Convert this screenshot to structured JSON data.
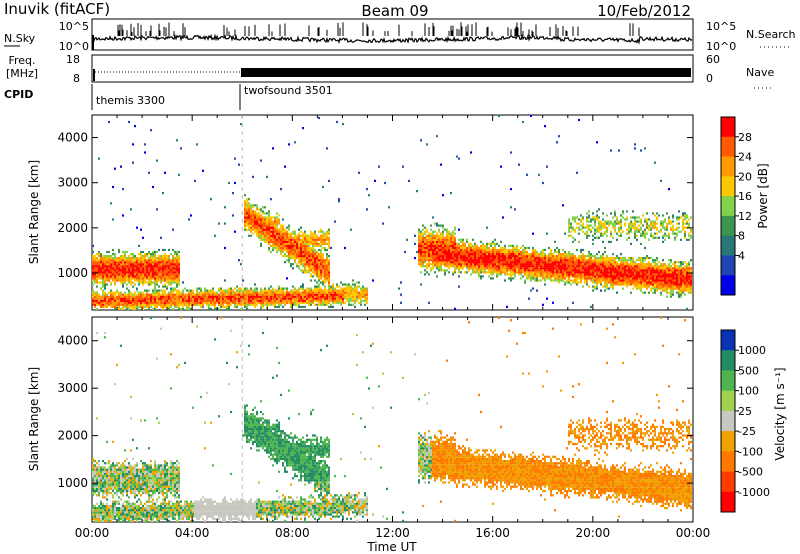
{
  "header": {
    "station": "Inuvik (fitACF)",
    "beam": "Beam 09",
    "date": "10/Feb/2012"
  },
  "panels": {
    "nsky": {
      "left_label": "N.Sky",
      "right_label": "N.Search",
      "left_ticks": [
        "10^5",
        "10^0"
      ],
      "right_ticks": [
        "10^5",
        "10^0"
      ]
    },
    "freq": {
      "left_label_line1": "Freq.",
      "left_label_line2": "[MHz]",
      "right_label": "Nave",
      "left_ticks": [
        "18",
        "8"
      ],
      "right_ticks": [
        "60",
        "0"
      ]
    },
    "cpid": {
      "label": "CPID",
      "segments": [
        {
          "name": "themis 3300",
          "start_hour": 0
        },
        {
          "name": "twofsound 3501",
          "start_hour": 6
        }
      ]
    }
  },
  "chart_data": [
    {
      "type": "heatmap",
      "title": "",
      "ylabel": "Slant Range [km]",
      "xlim_hours": [
        0,
        24
      ],
      "ylim": [
        180,
        4500
      ],
      "yticks": [
        "1000",
        "2000",
        "3000",
        "4000"
      ],
      "colorbar": {
        "label": "Power [dB]",
        "ticks": [
          "28",
          "24",
          "20",
          "16",
          "12",
          "8",
          "4"
        ],
        "colors": [
          "#ff0000",
          "#ff5a00",
          "#ff9a00",
          "#ffc800",
          "#82d24b",
          "#3c9650",
          "#287878",
          "#1e46b4",
          "#0000e6"
        ]
      }
    },
    {
      "type": "heatmap",
      "title": "",
      "ylabel": "Slant Range [km]",
      "xlim_hours": [
        0,
        24
      ],
      "ylim": [
        180,
        4500
      ],
      "yticks": [
        "1000",
        "2000",
        "3000",
        "4000"
      ],
      "colorbar": {
        "label": "Velocity [m s⁻¹]",
        "ticks": [
          "1000",
          "500",
          "100",
          "25",
          "-25",
          "-100",
          "-500",
          "-1000"
        ],
        "colors": [
          "#0a32b4",
          "#238c64",
          "#50b450",
          "#a0d250",
          "#c8c8c0",
          "#f0a000",
          "#ff7800",
          "#ff3c00",
          "#ff0000"
        ]
      }
    }
  ],
  "xaxis": {
    "label": "Time UT",
    "ticks": [
      "00:00",
      "04:00",
      "08:00",
      "12:00",
      "16:00",
      "20:00",
      "00:00"
    ]
  }
}
